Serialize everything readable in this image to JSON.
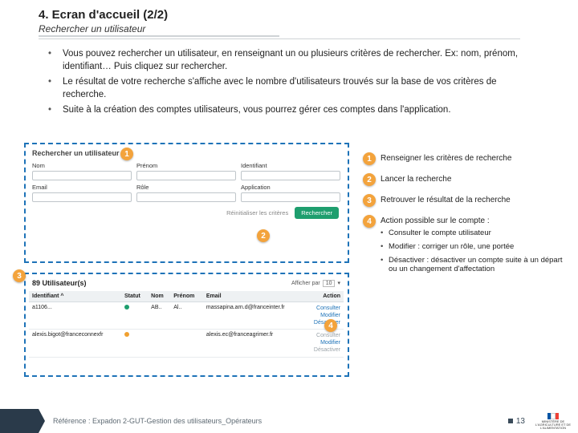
{
  "title": "4. Ecran d'accueil (2/2)",
  "subtitle": "Rechercher un utilisateur",
  "bullets": [
    "Vous pouvez rechercher un utilisateur, en renseignant un ou plusieurs critères de rechercher. Ex: nom, prénom, identifiant… Puis cliquez sur rechercher.",
    "Le résultat de votre recherche s'affiche avec le nombre d'utilisateurs trouvés sur la base de vos critères de recherche.",
    "Suite à la création des comptes utilisateurs, vous pourrez gérer ces comptes dans l'application."
  ],
  "search": {
    "panel_title": "Rechercher un utilisateur",
    "fields_row1": [
      "Nom",
      "Prénom",
      "Identifiant"
    ],
    "fields_row2": [
      "Email",
      "Rôle",
      "Application"
    ],
    "reset": "Réinitialiser les critères",
    "button": "Rechercher"
  },
  "results": {
    "count_label": "89 Utilisateur(s)",
    "pager_label": "Afficher par",
    "pager_value": "10",
    "columns": [
      "Identifiant ^",
      "Statut",
      "Nom",
      "Prénom",
      "Email",
      "Action"
    ],
    "rows": [
      {
        "id": "a1106...",
        "status": "#1e9e6e",
        "nom": "AB..",
        "prenom": "Al..",
        "email": "massapina.arn.d@franceinter.fr",
        "actions": [
          "Consulter",
          "Modifier",
          "Désactiver"
        ],
        "muted": [
          false,
          false,
          false
        ]
      },
      {
        "id": "alexis.bigot@franceconnexfr",
        "status": "#f0a030",
        "nom": "",
        "prenom": "",
        "email": "alexis.ec@franceagrimer.fr",
        "actions": [
          "Consulter",
          "Modifier",
          "Désactiver"
        ],
        "muted": [
          true,
          false,
          true
        ]
      }
    ]
  },
  "legend": {
    "items": [
      {
        "n": "1",
        "text": "Renseigner les critères de recherche"
      },
      {
        "n": "2",
        "text": "Lancer la recherche"
      },
      {
        "n": "3",
        "text": "Retrouver le résultat de la recherche"
      },
      {
        "n": "4",
        "text": "Action possible sur le compte :",
        "sub": [
          "Consulter le compte utilisateur",
          "Modifier : corriger un rôle, une portée",
          "Désactiver : désactiver un compte suite à un départ ou un changement d'affectation"
        ]
      }
    ]
  },
  "footer": {
    "ref": "Référence : Expadon 2-GUT-Gestion des utilisateurs_Opérateurs",
    "page": "13",
    "ministry": "MINISTÈRE DE L'AGRICULTURE ET DE L'ALIMENTATION"
  },
  "colors": {
    "accent": "#1e73b8",
    "orange": "#f3a33c",
    "green": "#1e9e6e"
  }
}
